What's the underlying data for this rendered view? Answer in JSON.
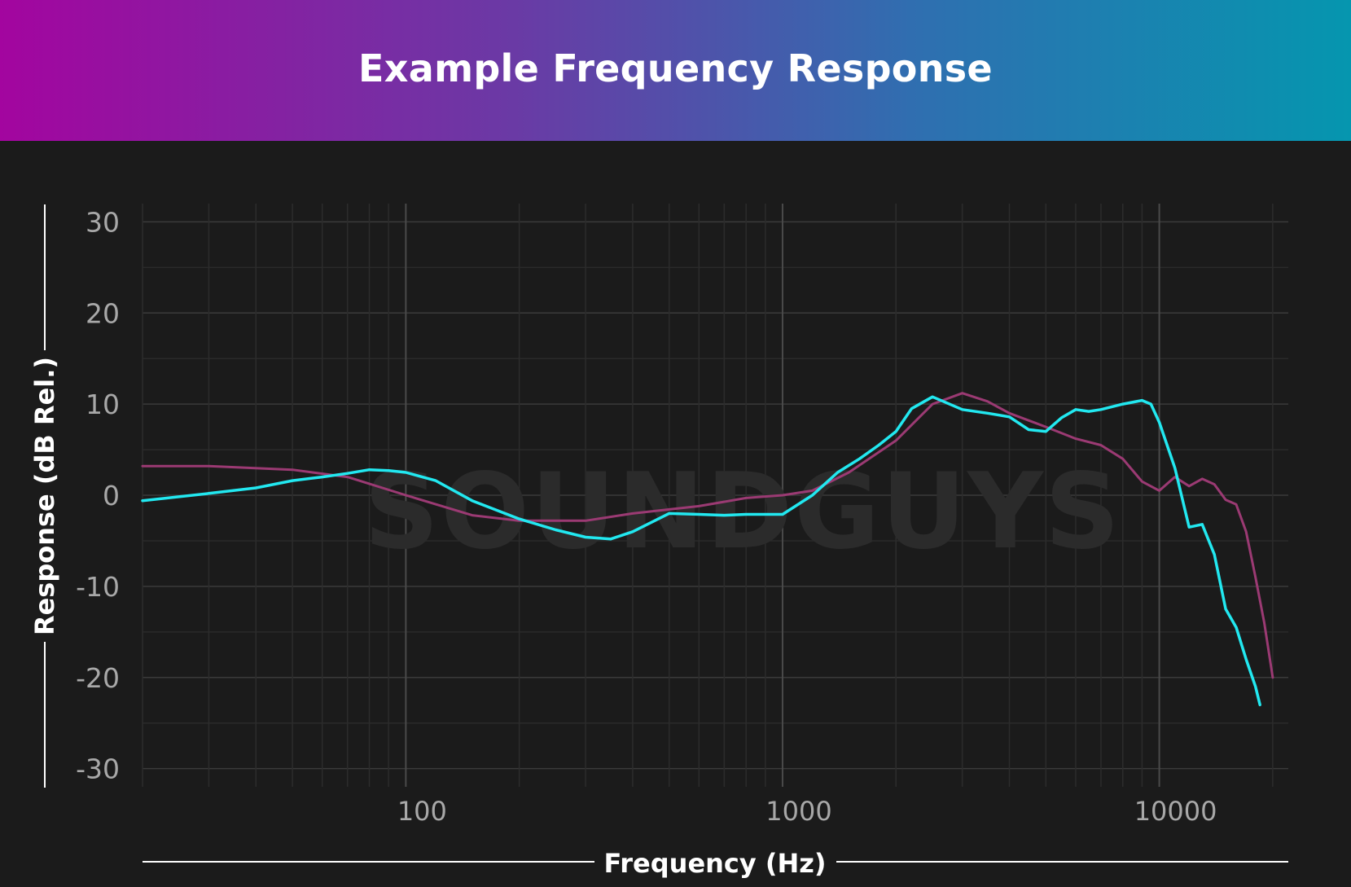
{
  "chart_data": {
    "type": "line",
    "title": "Example Frequency Response",
    "xlabel": "Frequency (Hz)",
    "ylabel": "Response (dB Rel.)",
    "xscale": "log",
    "xlim": [
      20,
      22000
    ],
    "ylim": [
      -32,
      32
    ],
    "yticks": [
      30,
      20,
      10,
      0,
      -10,
      -20,
      -30
    ],
    "ytick_labels": [
      "30",
      "20",
      "10",
      "0",
      "-10",
      "-20",
      "-30"
    ],
    "xticks": [
      100,
      1000,
      10000
    ],
    "xtick_labels": [
      "100",
      "1000",
      "10000"
    ],
    "grid": true,
    "legend": false,
    "watermark": "SOUNDGUYS",
    "series": [
      {
        "color": "#9b3a73",
        "x": [
          20,
          30,
          50,
          70,
          100,
          150,
          200,
          300,
          400,
          600,
          800,
          1000,
          1200,
          1500,
          2000,
          2500,
          3000,
          3500,
          4000,
          5000,
          6000,
          7000,
          8000,
          9000,
          10000,
          11000,
          12000,
          13000,
          14000,
          15000,
          16000,
          17000,
          18000,
          19000,
          20000
        ],
        "y": [
          3.2,
          3.2,
          2.8,
          2.0,
          0.0,
          -2.2,
          -2.8,
          -2.8,
          -2.0,
          -1.2,
          -0.3,
          0.0,
          0.5,
          2.5,
          6.0,
          10.0,
          11.2,
          10.3,
          9.0,
          7.5,
          6.2,
          5.5,
          4.0,
          1.5,
          0.5,
          2.0,
          1.0,
          1.8,
          1.2,
          -0.5,
          -1.0,
          -4.0,
          -9.0,
          -14.0,
          -20.0
        ]
      },
      {
        "color": "#22e8f0",
        "x": [
          20,
          30,
          40,
          50,
          60,
          70,
          80,
          90,
          100,
          120,
          150,
          200,
          250,
          300,
          350,
          400,
          500,
          600,
          700,
          800,
          1000,
          1200,
          1400,
          1600,
          1800,
          2000,
          2200,
          2500,
          3000,
          3500,
          4000,
          4500,
          5000,
          5500,
          6000,
          6500,
          7000,
          8000,
          9000,
          9500,
          10000,
          11000,
          12000,
          13000,
          14000,
          15000,
          16000,
          17000,
          18000,
          18500
        ],
        "y": [
          -0.6,
          0.2,
          0.8,
          1.6,
          2.0,
          2.4,
          2.8,
          2.7,
          2.5,
          1.6,
          -0.6,
          -2.6,
          -3.8,
          -4.6,
          -4.8,
          -4.0,
          -2.0,
          -2.1,
          -2.2,
          -2.1,
          -2.1,
          0.0,
          2.5,
          4.0,
          5.5,
          7.0,
          9.5,
          10.8,
          9.4,
          9.0,
          8.6,
          7.2,
          7.0,
          8.5,
          9.4,
          9.2,
          9.4,
          10.0,
          10.4,
          10.0,
          8.0,
          3.0,
          -3.5,
          -3.2,
          -6.5,
          -12.5,
          -14.5,
          -18.0,
          -21.0,
          -23.0
        ]
      }
    ]
  }
}
